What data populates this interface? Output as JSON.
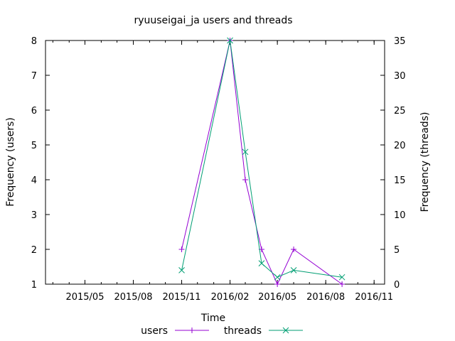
{
  "chart_data": {
    "type": "line",
    "title": "ryuuseigai_ja users and threads",
    "xlabel": "Time",
    "ylabel": "Frequency (users)",
    "y2label": "Frequency (threads)",
    "x_ticks": [
      "2015/05",
      "2015/08",
      "2015/11",
      "2016/02",
      "2016/05",
      "2016/08",
      "2016/11"
    ],
    "ylim": [
      1,
      8
    ],
    "y_ticks": [
      1,
      2,
      3,
      4,
      5,
      6,
      7,
      8
    ],
    "y2lim": [
      0,
      35
    ],
    "y2_ticks": [
      0,
      5,
      10,
      15,
      20,
      25,
      30,
      35
    ],
    "legend_position": "bottom",
    "series": [
      {
        "name": "users",
        "axis": "left",
        "color": "#9400d3",
        "marker": "plus",
        "points": [
          {
            "date": "2015-11-01",
            "value": 2
          },
          {
            "date": "2016-02-01",
            "value": 8
          },
          {
            "date": "2016-03-01",
            "value": 4
          },
          {
            "date": "2016-04-01",
            "value": 2
          },
          {
            "date": "2016-05-01",
            "value": 1
          },
          {
            "date": "2016-06-01",
            "value": 2
          },
          {
            "date": "2016-09-01",
            "value": 1
          }
        ]
      },
      {
        "name": "threads",
        "axis": "right",
        "color": "#009e73",
        "marker": "cross",
        "points": [
          {
            "date": "2015-11-01",
            "value": 2
          },
          {
            "date": "2016-02-01",
            "value": 35
          },
          {
            "date": "2016-03-01",
            "value": 19
          },
          {
            "date": "2016-04-01",
            "value": 3
          },
          {
            "date": "2016-05-01",
            "value": 1
          },
          {
            "date": "2016-06-01",
            "value": 2
          },
          {
            "date": "2016-09-01",
            "value": 1
          }
        ]
      }
    ]
  }
}
